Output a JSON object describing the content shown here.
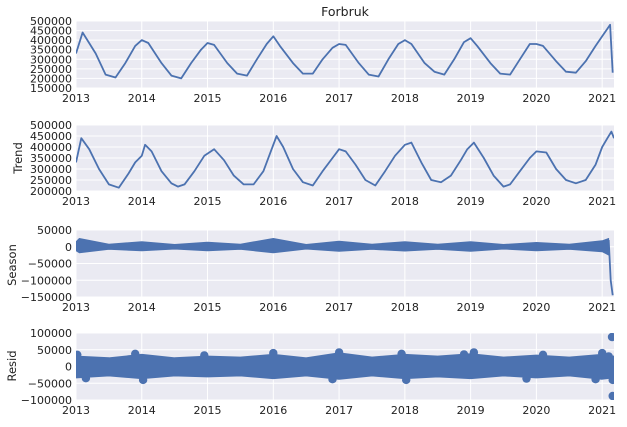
{
  "colors": {
    "panel_bg": "#EAEAF2",
    "grid": "#FFFFFF",
    "series": "#4C72B0"
  },
  "chart_data": [
    {
      "type": "line",
      "title": "Forbruk",
      "ylabel": "",
      "xlim": [
        2013.0,
        2021.18
      ],
      "ylim": [
        150000,
        500000
      ],
      "xticks": [
        2013,
        2014,
        2015,
        2016,
        2017,
        2018,
        2019,
        2020,
        2021
      ],
      "xtick_labels": [
        "2013",
        "2014",
        "2015",
        "2016",
        "2017",
        "2018",
        "2019",
        "2020",
        "2021"
      ],
      "yticks": [
        150000,
        200000,
        250000,
        300000,
        350000,
        400000,
        450000,
        500000
      ],
      "ytick_labels": [
        "150000",
        "200000",
        "250000",
        "300000",
        "350000",
        "400000",
        "450000",
        "500000"
      ],
      "grid": true,
      "series": [
        {
          "x": [
            2013.0,
            2013.1,
            2013.3,
            2013.45,
            2013.6,
            2013.75,
            2013.9,
            2014.0,
            2014.1,
            2014.3,
            2014.45,
            2014.6,
            2014.75,
            2014.9,
            2015.0,
            2015.1,
            2015.3,
            2015.45,
            2015.6,
            2015.75,
            2015.9,
            2016.0,
            2016.1,
            2016.3,
            2016.45,
            2016.6,
            2016.75,
            2016.9,
            2017.0,
            2017.1,
            2017.3,
            2017.45,
            2017.6,
            2017.75,
            2017.9,
            2018.0,
            2018.1,
            2018.3,
            2018.45,
            2018.6,
            2018.75,
            2018.9,
            2019.0,
            2019.1,
            2019.3,
            2019.45,
            2019.6,
            2019.75,
            2019.9,
            2020.0,
            2020.1,
            2020.3,
            2020.45,
            2020.6,
            2020.75,
            2020.9,
            2021.0,
            2021.08,
            2021.12,
            2021.16
          ],
          "values": [
            330000,
            440000,
            330000,
            220000,
            205000,
            280000,
            370000,
            400000,
            385000,
            280000,
            215000,
            200000,
            280000,
            350000,
            385000,
            375000,
            280000,
            225000,
            215000,
            300000,
            380000,
            420000,
            370000,
            280000,
            225000,
            225000,
            300000,
            360000,
            380000,
            375000,
            280000,
            220000,
            210000,
            300000,
            380000,
            400000,
            380000,
            280000,
            235000,
            220000,
            300000,
            390000,
            410000,
            370000,
            280000,
            225000,
            220000,
            300000,
            380000,
            380000,
            370000,
            290000,
            235000,
            230000,
            290000,
            370000,
            420000,
            460000,
            480000,
            230000
          ]
        }
      ]
    },
    {
      "type": "line",
      "title": "",
      "ylabel": "Trend",
      "xlim": [
        2013.0,
        2021.18
      ],
      "ylim": [
        200000,
        500000
      ],
      "xticks": [
        2013,
        2014,
        2015,
        2016,
        2017,
        2018,
        2019,
        2020,
        2021
      ],
      "xtick_labels": [
        "2013",
        "2014",
        "2015",
        "2016",
        "2017",
        "2018",
        "2019",
        "2020",
        "2021"
      ],
      "yticks": [
        200000,
        250000,
        300000,
        350000,
        400000,
        450000,
        500000
      ],
      "ytick_labels": [
        "200000",
        "250000",
        "300000",
        "350000",
        "400000",
        "450000",
        "500000"
      ],
      "grid": true,
      "series": [
        {
          "x": [
            2013.0,
            2013.08,
            2013.2,
            2013.35,
            2013.5,
            2013.65,
            2013.8,
            2013.9,
            2014.0,
            2014.05,
            2014.15,
            2014.3,
            2014.45,
            2014.55,
            2014.65,
            2014.8,
            2014.95,
            2015.1,
            2015.25,
            2015.4,
            2015.55,
            2015.7,
            2015.85,
            2015.95,
            2016.05,
            2016.15,
            2016.3,
            2016.45,
            2016.6,
            2016.75,
            2016.9,
            2017.0,
            2017.1,
            2017.25,
            2017.4,
            2017.55,
            2017.7,
            2017.85,
            2018.0,
            2018.1,
            2018.25,
            2018.4,
            2018.55,
            2018.7,
            2018.85,
            2018.95,
            2019.05,
            2019.2,
            2019.35,
            2019.5,
            2019.6,
            2019.75,
            2019.9,
            2020.0,
            2020.15,
            2020.3,
            2020.45,
            2020.6,
            2020.75,
            2020.9,
            2021.0,
            2021.08,
            2021.14,
            2021.18
          ],
          "values": [
            330000,
            440000,
            390000,
            300000,
            230000,
            215000,
            280000,
            330000,
            360000,
            410000,
            380000,
            290000,
            235000,
            220000,
            230000,
            290000,
            360000,
            390000,
            340000,
            270000,
            230000,
            230000,
            290000,
            370000,
            450000,
            400000,
            300000,
            240000,
            225000,
            290000,
            350000,
            390000,
            380000,
            320000,
            250000,
            225000,
            290000,
            360000,
            410000,
            420000,
            330000,
            250000,
            240000,
            270000,
            340000,
            390000,
            420000,
            350000,
            270000,
            220000,
            230000,
            290000,
            350000,
            380000,
            375000,
            300000,
            250000,
            235000,
            250000,
            320000,
            400000,
            440000,
            470000,
            440000
          ]
        }
      ]
    },
    {
      "type": "line",
      "title": "",
      "ylabel": "Season",
      "xlim": [
        2013.0,
        2021.18
      ],
      "ylim": [
        -150000,
        50000
      ],
      "xticks": [
        2013,
        2014,
        2015,
        2016,
        2017,
        2018,
        2019,
        2020,
        2021
      ],
      "xtick_labels": [
        "2013",
        "2014",
        "2015",
        "2016",
        "2017",
        "2018",
        "2019",
        "2020",
        "2021"
      ],
      "yticks": [
        -150000,
        -100000,
        -50000,
        0,
        50000
      ],
      "ytick_labels": [
        "−150000",
        "−100000",
        "−50000",
        "0",
        "50000"
      ],
      "grid": true,
      "band": {
        "x": [
          2013.0,
          2013.05,
          2013.5,
          2014.0,
          2014.5,
          2015.0,
          2015.5,
          2016.0,
          2016.5,
          2017.0,
          2017.5,
          2018.0,
          2018.5,
          2019.0,
          2019.5,
          2020.0,
          2020.5,
          2021.0,
          2021.1
        ],
        "upper": [
          15000,
          25000,
          8000,
          15000,
          7000,
          14000,
          8000,
          25000,
          7000,
          17000,
          8000,
          15000,
          8000,
          15000,
          7000,
          13000,
          8000,
          18000,
          25000
        ],
        "lower": [
          -12000,
          -18000,
          -8000,
          -12000,
          -7000,
          -12000,
          -8000,
          -18000,
          -7000,
          -14000,
          -8000,
          -13000,
          -8000,
          -14000,
          -7000,
          -12000,
          -8000,
          -15000,
          -25000
        ]
      },
      "series": [
        {
          "x": [
            2021.1,
            2021.13,
            2021.16
          ],
          "values": [
            20000,
            -100000,
            -145000
          ]
        }
      ]
    },
    {
      "type": "scatter",
      "title": "",
      "ylabel": "Resid",
      "xlim": [
        2013.0,
        2021.18
      ],
      "ylim": [
        -100000,
        100000
      ],
      "xticks": [
        2013,
        2014,
        2015,
        2016,
        2017,
        2018,
        2019,
        2020,
        2021
      ],
      "xtick_labels": [
        "2013",
        "2014",
        "2015",
        "2016",
        "2017",
        "2018",
        "2019",
        "2020",
        "2021"
      ],
      "yticks": [
        -100000,
        -50000,
        0,
        50000,
        100000
      ],
      "ytick_labels": [
        "−100000",
        "−50000",
        "0",
        "50000",
        "100000"
      ],
      "grid": true,
      "band": {
        "x": [
          2013.0,
          2013.5,
          2014.0,
          2014.5,
          2015.0,
          2015.5,
          2016.0,
          2016.5,
          2017.0,
          2017.5,
          2018.0,
          2018.5,
          2019.0,
          2019.5,
          2020.0,
          2020.5,
          2021.0,
          2021.17
        ],
        "upper": [
          25000,
          20000,
          30000,
          20000,
          25000,
          22000,
          30000,
          20000,
          35000,
          22000,
          30000,
          25000,
          32000,
          22000,
          28000,
          22000,
          30000,
          25000
        ],
        "lower": [
          -28000,
          -22000,
          -30000,
          -22000,
          -25000,
          -22000,
          -30000,
          -22000,
          -32000,
          -22000,
          -30000,
          -25000,
          -30000,
          -22000,
          -28000,
          -22000,
          -32000,
          -28000
        ]
      },
      "points": {
        "x": [
          2013.02,
          2013.15,
          2013.9,
          2014.02,
          2014.95,
          2016.0,
          2016.9,
          2017.0,
          2017.95,
          2018.02,
          2018.9,
          2019.05,
          2019.85,
          2020.1,
          2020.9,
          2021.0,
          2021.1,
          2021.15,
          2021.16,
          2021.16
        ],
        "values": [
          35000,
          -35000,
          38000,
          -40000,
          33000,
          40000,
          -38000,
          42000,
          38000,
          -40000,
          36000,
          42000,
          -36000,
          35000,
          -38000,
          40000,
          30000,
          88000,
          -88000,
          -40000
        ]
      }
    }
  ]
}
